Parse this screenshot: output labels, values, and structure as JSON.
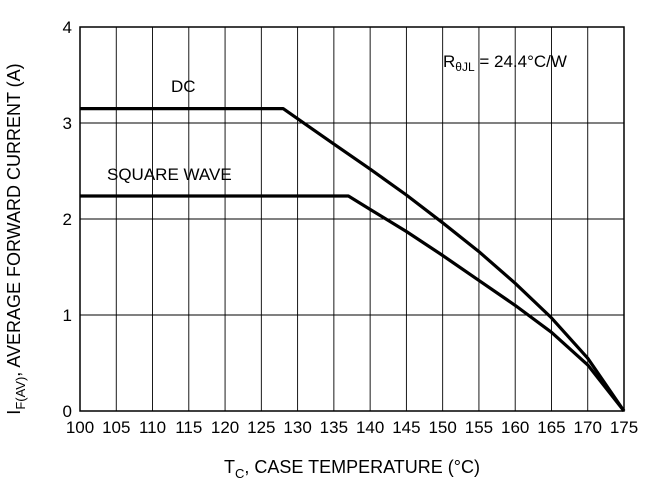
{
  "chart_data": {
    "type": "line",
    "xlabel": {
      "main": "T",
      "sub": "C",
      "rest": ", CASE TEMPERATURE (°C)"
    },
    "ylabel": {
      "main": "I",
      "sub": "F(AV)",
      "rest": ", AVERAGE FORWARD CURRENT (A)"
    },
    "xlim": [
      100,
      175
    ],
    "ylim": [
      0,
      4
    ],
    "x_ticks": [
      100,
      105,
      110,
      115,
      120,
      125,
      130,
      135,
      140,
      145,
      150,
      155,
      160,
      165,
      170,
      175
    ],
    "y_ticks": [
      0,
      1,
      2,
      3,
      4
    ],
    "grid": true,
    "series": [
      {
        "name": "DC",
        "x": [
          100,
          128,
          135,
          140,
          145,
          150,
          155,
          160,
          165,
          170,
          175
        ],
        "y": [
          3.15,
          3.15,
          2.78,
          2.52,
          2.25,
          1.96,
          1.66,
          1.33,
          0.97,
          0.55,
          0
        ]
      },
      {
        "name": "SQUARE WAVE",
        "x": [
          100,
          137,
          140,
          145,
          150,
          155,
          160,
          165,
          170,
          175
        ],
        "y": [
          2.24,
          2.24,
          2.1,
          1.87,
          1.62,
          1.36,
          1.1,
          0.82,
          0.48,
          0
        ]
      }
    ],
    "annotation": {
      "main": "R",
      "sub": "θJL",
      "rest": " = 24.4°C/W"
    }
  }
}
